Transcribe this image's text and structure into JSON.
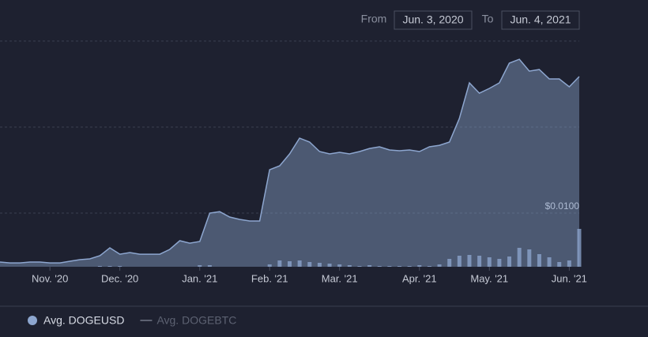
{
  "range_selector": {
    "from_label": "From",
    "from_value": "Jun. 3, 2020",
    "to_label": "To",
    "to_value": "Jun. 4, 2021"
  },
  "chart_data": {
    "type": "area",
    "log_scale": true,
    "ylim": [
      0.00238,
      1.29
    ],
    "yticks": [
      {
        "value": 0.01,
        "label": "$0.0100"
      }
    ],
    "grid_lines": [
      0.1,
      1
    ],
    "y2lim": [
      0,
      100
    ],
    "categories": [
      null,
      null,
      null,
      null,
      null,
      "Nov. '20",
      null,
      null,
      null,
      null,
      null,
      null,
      "Dec. '20",
      null,
      null,
      null,
      null,
      null,
      null,
      null,
      "Jan. '21",
      null,
      null,
      null,
      null,
      null,
      null,
      "Feb. '21",
      null,
      null,
      null,
      null,
      null,
      null,
      "Mar. '21",
      null,
      null,
      null,
      null,
      null,
      null,
      null,
      "Apr. '21",
      null,
      null,
      null,
      null,
      null,
      null,
      "May. '21",
      null,
      null,
      null,
      null,
      null,
      null,
      null,
      "Jun. '21",
      null
    ],
    "series": [
      {
        "name": "Avg. DOGEUSD",
        "color": "#8da6cf",
        "values": [
          0.0027,
          0.00264,
          0.00264,
          0.0027,
          0.0027,
          0.00264,
          0.00264,
          0.00276,
          0.00288,
          0.00294,
          0.0032,
          0.00395,
          0.00333,
          0.00348,
          0.00333,
          0.00333,
          0.00333,
          0.00379,
          0.00478,
          0.00448,
          0.00468,
          0.01,
          0.0104,
          0.009,
          0.00845,
          0.0081,
          0.0081,
          0.032,
          0.0355,
          0.0488,
          0.0744,
          0.067,
          0.052,
          0.0488,
          0.0509,
          0.0488,
          0.052,
          0.0565,
          0.059,
          0.0542,
          0.0531,
          0.0542,
          0.052,
          0.059,
          0.0615,
          0.067,
          0.126,
          0.327,
          0.248,
          0.282,
          0.327,
          0.554,
          0.615,
          0.448,
          0.467,
          0.363,
          0.363,
          0.294,
          0.387
        ]
      },
      {
        "type": "bar",
        "axis": "y2",
        "color": "#8fa8d2",
        "values": [
          0,
          0,
          0,
          0,
          0,
          0,
          0,
          0,
          0,
          0,
          1,
          1,
          1,
          0,
          0,
          0,
          0,
          0,
          0,
          0,
          2,
          2,
          0,
          0,
          0,
          0,
          0,
          3,
          8,
          7,
          8,
          6,
          5,
          4,
          3,
          2,
          1,
          2,
          1,
          1,
          1,
          1,
          2,
          1,
          3,
          10,
          14,
          15,
          14,
          12,
          10,
          13,
          24,
          22,
          16,
          12,
          6,
          8,
          48
        ]
      },
      {
        "name": "Avg. DOGEBTC",
        "color": "#5d6272",
        "visible": false
      }
    ]
  }
}
